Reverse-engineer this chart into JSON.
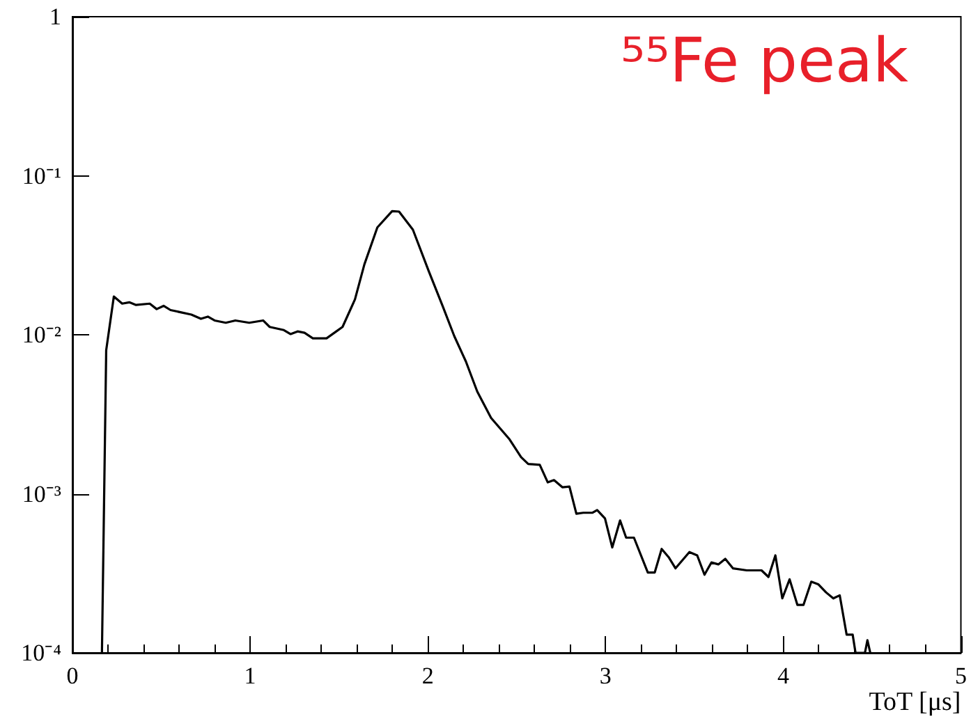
{
  "chart_data": {
    "type": "line",
    "xlabel": "ToT [μs]",
    "annotations": [
      "⁵⁵Fe peak"
    ],
    "log": "y",
    "grid": false,
    "marker": "none",
    "line_style": "solid",
    "xlim": [
      0,
      5
    ],
    "xticks": [
      0,
      1,
      2,
      3,
      4,
      5
    ],
    "ylim": [
      0.0001,
      1
    ],
    "yticks": [
      {
        "value": 0.0001,
        "label": "10⁻⁴"
      },
      {
        "value": 0.001,
        "label": "10⁻³"
      },
      {
        "value": 0.01,
        "label": "10⁻²"
      },
      {
        "value": 0.1,
        "label": "10⁻¹"
      },
      {
        "value": 1,
        "label": "1"
      }
    ],
    "series": [
      {
        "color": "#000000",
        "x": [
          0.166,
          0.19,
          0.233,
          0.28,
          0.32,
          0.358,
          0.435,
          0.474,
          0.513,
          0.552,
          0.669,
          0.723,
          0.762,
          0.8,
          0.863,
          0.917,
          0.995,
          1.073,
          1.11,
          1.19,
          1.228,
          1.267,
          1.306,
          1.353,
          1.43,
          1.485,
          1.52,
          1.59,
          1.643,
          1.716,
          1.799,
          1.838,
          1.916,
          2.006,
          2.084,
          2.149,
          2.214,
          2.278,
          2.356,
          2.46,
          2.525,
          2.565,
          2.63,
          2.675,
          2.71,
          2.757,
          2.797,
          2.836,
          2.875,
          2.927,
          2.953,
          2.997,
          3.038,
          3.082,
          3.116,
          3.16,
          3.238,
          3.277,
          3.316,
          3.355,
          3.394,
          3.472,
          3.516,
          3.557,
          3.596,
          3.635,
          3.674,
          3.717,
          3.795,
          3.878,
          3.917,
          3.956,
          3.995,
          4.036,
          4.08,
          4.114,
          4.158,
          4.197,
          4.241,
          4.282,
          4.318,
          4.357,
          4.391,
          4.407,
          4.46,
          4.474,
          4.49
        ],
        "values": [
          0.0001,
          0.008,
          0.0174,
          0.0157,
          0.016,
          0.0154,
          0.0157,
          0.0145,
          0.0152,
          0.0143,
          0.0134,
          0.0126,
          0.013,
          0.0123,
          0.0119,
          0.0123,
          0.0119,
          0.0123,
          0.0112,
          0.0107,
          0.0101,
          0.0105,
          0.0103,
          0.0095,
          0.0095,
          0.0105,
          0.0112,
          0.0167,
          0.0277,
          0.0473,
          0.0599,
          0.0595,
          0.0458,
          0.025,
          0.0151,
          0.0098,
          0.0068,
          0.0044,
          0.003,
          0.0022,
          0.0017,
          0.00154,
          0.00152,
          0.00118,
          0.00122,
          0.0011,
          0.00111,
          0.00075,
          0.00076,
          0.00076,
          0.00079,
          0.0007,
          0.00046,
          0.00068,
          0.00053,
          0.00053,
          0.00032,
          0.00032,
          0.00045,
          0.0004,
          0.00034,
          0.00043,
          0.00041,
          0.00031,
          0.00037,
          0.00036,
          0.00039,
          0.00034,
          0.00033,
          0.00033,
          0.0003,
          0.00041,
          0.00022,
          0.00029,
          0.0002,
          0.0002,
          0.00028,
          0.00027,
          0.00024,
          0.00022,
          0.00023,
          0.00013,
          0.00013,
          0.0001,
          0.0001,
          0.00012,
          0.0001
        ]
      }
    ]
  }
}
